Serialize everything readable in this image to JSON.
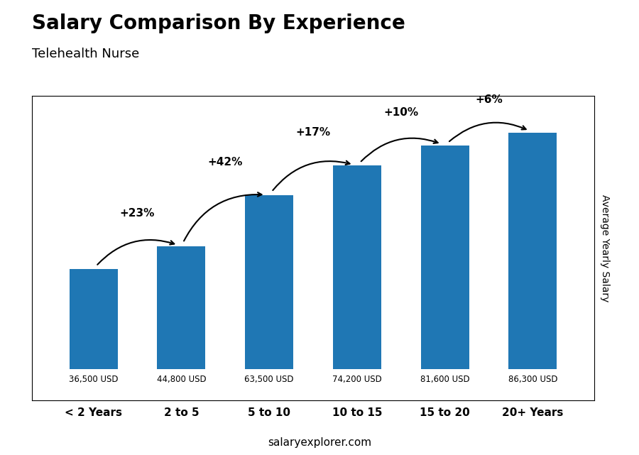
{
  "chart_data": {
    "type": "bar",
    "title": "Salary Comparison By Experience",
    "subtitle": "Telehealth Nurse",
    "y_label": "Average Yearly Salary",
    "categories": [
      "< 2 Years",
      "2 to 5",
      "5 to 10",
      "10 to 15",
      "15 to 20",
      "20+ Years"
    ],
    "values": [
      36500,
      44800,
      63500,
      74200,
      81600,
      86300
    ],
    "value_labels": [
      "36,500 USD",
      "44,800 USD",
      "63,500 USD",
      "74,200 USD",
      "81,600 USD",
      "86,300 USD"
    ],
    "data_labels": true,
    "change_labels": [
      null,
      "+23%",
      "+42%",
      "+17%",
      "+10%",
      "+6%"
    ],
    "annotations": [
      "salaryexplorer.com"
    ],
    "ylim": [
      -11400,
      99750
    ],
    "yticks": [],
    "tick_labels": "x",
    "grid": false
  }
}
